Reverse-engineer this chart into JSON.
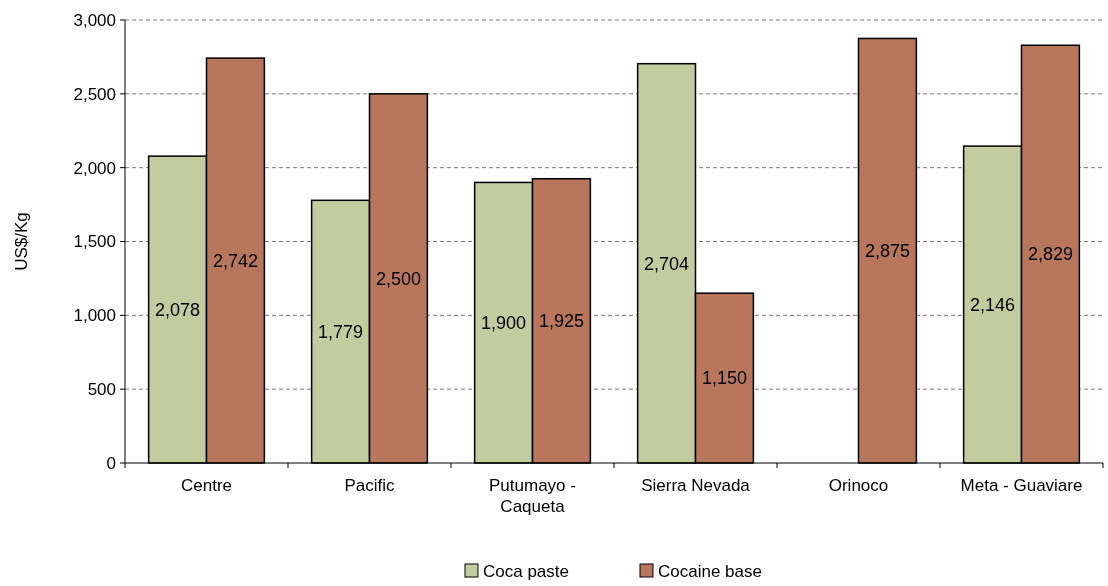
{
  "chart_data": {
    "type": "bar",
    "ylabel": "US$/Kg",
    "categories": [
      "Centre",
      "Pacific",
      "Putumayo - Caqueta",
      "Sierra Nevada",
      "Orinoco",
      "Meta - Guaviare"
    ],
    "series": [
      {
        "name": "Coca paste",
        "color": "#c3cc9e",
        "values": [
          2078,
          1779,
          1900,
          2704,
          null,
          2146
        ],
        "value_labels": [
          "2,078",
          "1,779",
          "1,900",
          "2,704",
          null,
          "2,146"
        ]
      },
      {
        "name": "Cocaine base",
        "color": "#b8775c",
        "values": [
          2742,
          2500,
          1925,
          1150,
          2875,
          2829
        ],
        "value_labels": [
          "2,742",
          "2,500",
          "1,925",
          "1,150",
          "2,875",
          "2,829"
        ]
      }
    ],
    "ylim": [
      0,
      3000
    ],
    "yticks": [
      {
        "value": 0,
        "label": "0"
      },
      {
        "value": 500,
        "label": "500"
      },
      {
        "value": 1000,
        "label": "1,000"
      },
      {
        "value": 1500,
        "label": "1,500"
      },
      {
        "value": 2000,
        "label": "2,000"
      },
      {
        "value": 2500,
        "label": "2,500"
      },
      {
        "value": 3000,
        "label": "3,000"
      }
    ],
    "grid": "y",
    "legend": "bottom"
  }
}
